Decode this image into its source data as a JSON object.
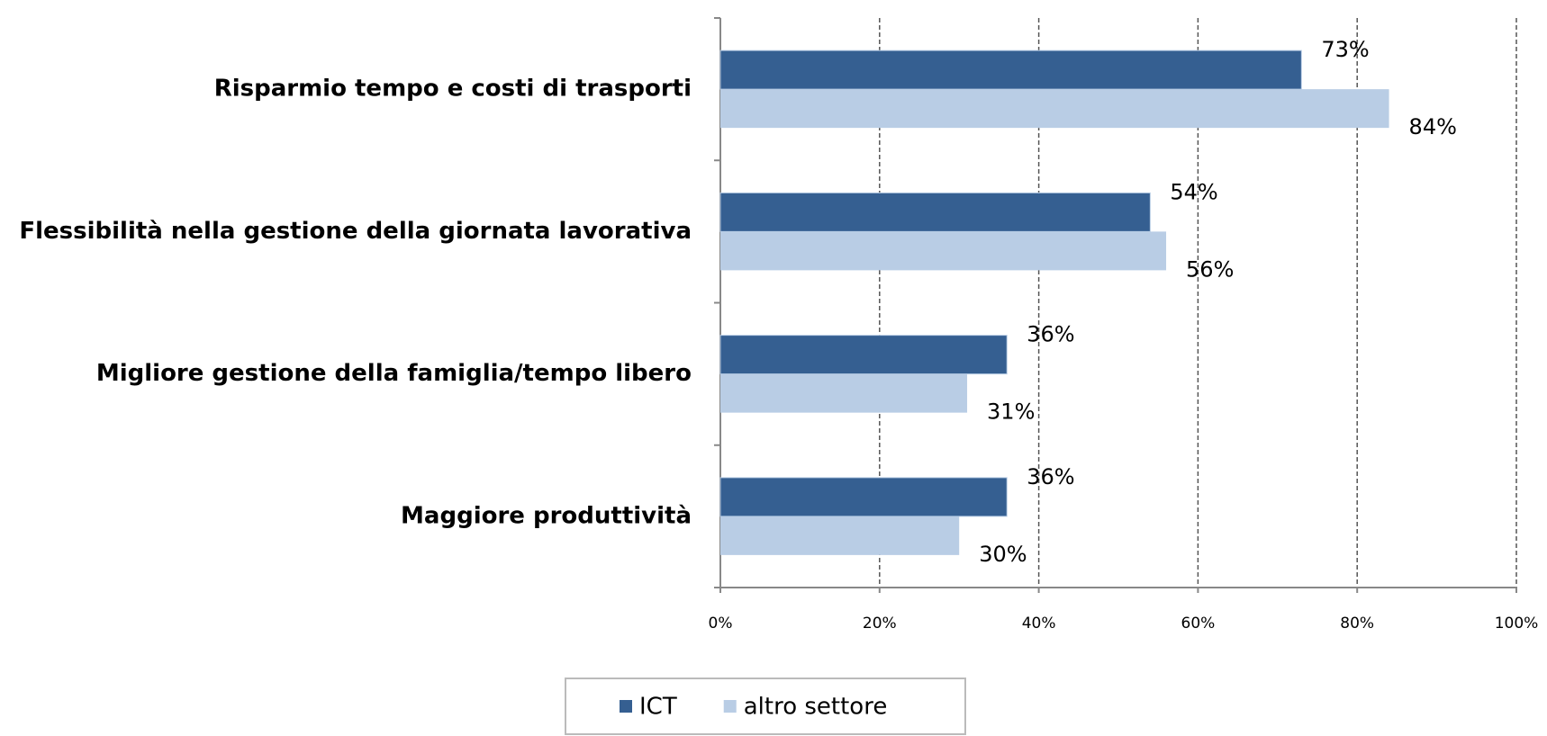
{
  "chart_data": {
    "type": "hbar",
    "categories": [
      "Risparmio tempo e costi di trasporti",
      "Flessibilità nella gestione della giornata lavorativa",
      "Migliore gestione della famiglia/tempo libero",
      "Maggiore produttività"
    ],
    "series": [
      {
        "name": "ICT",
        "color": "#355f91",
        "values": [
          73,
          54,
          36,
          36
        ],
        "value_labels": [
          "73%",
          "54%",
          "36%",
          "36%"
        ]
      },
      {
        "name": "altro settore",
        "color": "#b9cde5",
        "values": [
          84,
          56,
          31,
          30
        ],
        "value_labels": [
          "84%",
          "56%",
          "31%",
          "30%"
        ]
      }
    ],
    "xlim": [
      0,
      100
    ],
    "xticks": [
      {
        "value": 0,
        "label": "0%"
      },
      {
        "value": 20,
        "label": "20%"
      },
      {
        "value": 40,
        "label": "40%"
      },
      {
        "value": 60,
        "label": "60%"
      },
      {
        "value": 80,
        "label": "80%"
      },
      {
        "value": 100,
        "label": "100%"
      }
    ],
    "grid": true,
    "legend": "bottom"
  }
}
